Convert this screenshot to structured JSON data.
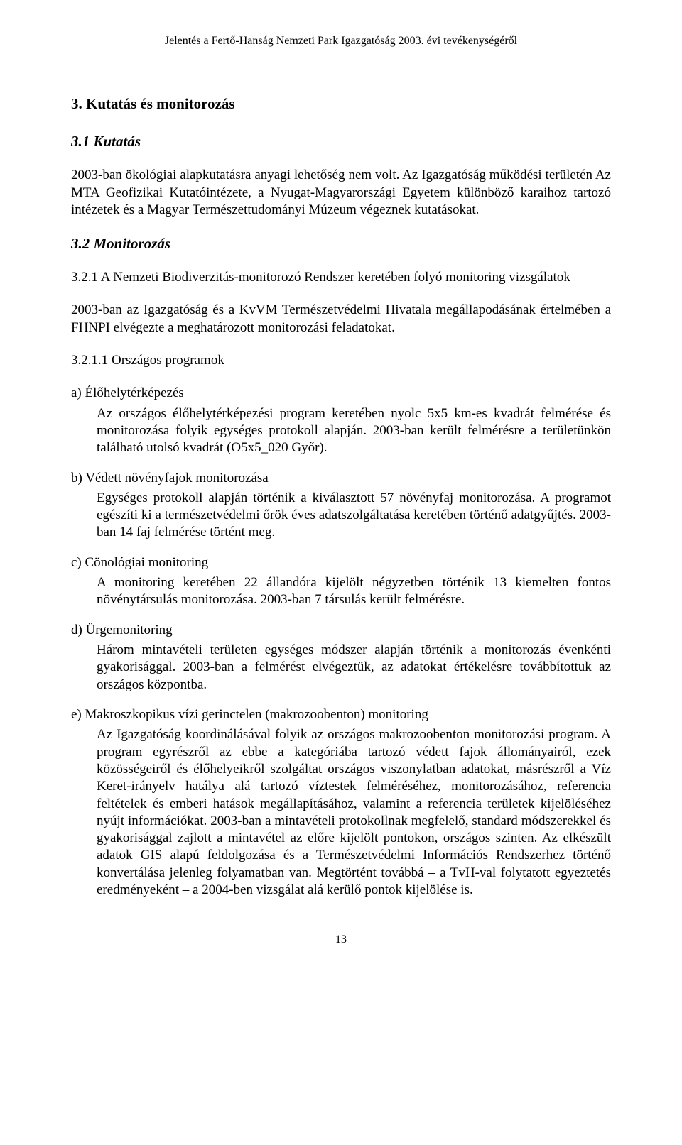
{
  "header": "Jelentés a Fertő-Hanság Nemzeti Park Igazgatóság 2003. évi tevékenységéről",
  "h_3": "3. Kutatás és monitorozás",
  "h_3_1": "3.1 Kutatás",
  "p_3_1": "2003-ban ökológiai alapkutatásra anyagi lehetőség nem volt. Az Igazgatóság működési területén Az MTA Geofizikai Kutatóintézete, a Nyugat-Magyarországi Egyetem különböző karaihoz tartozó intézetek és a Magyar Természettudományi Múzeum végeznek kutatásokat.",
  "h_3_2": "3.2 Monitorozás",
  "h_3_2_1": "3.2.1 A Nemzeti Biodiverzitás-monitorozó Rendszer keretében folyó monitoring vizsgálatok",
  "p_3_2_1": "2003-ban az Igazgatóság és a KvVM Természetvédelmi Hivatala megállapodásának értelmében a FHNPI elvégezte a meghatározott monitorozási feladatokat.",
  "h_3_2_1_1": "3.2.1.1 Országos programok",
  "a_label": "a) Élőhelytérképezés",
  "a_body": "Az országos élőhelytérképezési program keretében nyolc 5x5 km-es kvadrát felmérése és monitorozása folyik egységes protokoll alapján. 2003-ban került felmérésre a területünkön található utolsó kvadrát (O5x5_020 Győr).",
  "b_label": "b) Védett növényfajok monitorozása",
  "b_body": "Egységes protokoll alapján történik a kiválasztott 57 növényfaj monitorozása. A programot egészíti ki a természetvédelmi őrök éves adatszolgáltatása keretében történő adatgyűjtés. 2003-ban 14 faj felmérése történt meg.",
  "c_label": "c) Cönológiai monitoring",
  "c_body": "A monitoring keretében 22 állandóra kijelölt négyzetben történik 13 kiemelten fontos növénytársulás monitorozása. 2003-ban 7 társulás került felmérésre.",
  "d_label": "d) Ürgemonitoring",
  "d_body": "Három mintavételi területen egységes módszer alapján történik a monitorozás évenkénti gyakorisággal. 2003-ban a felmérést elvégeztük, az adatokat értékelésre továbbítottuk az országos központba.",
  "e_label": "e) Makroszkopikus vízi gerinctelen (makrozoobenton) monitoring",
  "e_body": "Az Igazgatóság koordinálásával folyik az országos makrozoobenton monitorozási program. A program egyrészről az ebbe a kategóriába tartozó védett fajok állományairól, ezek közösségeiről és élőhelyeikről szolgáltat országos viszonylatban adatokat, másrészről a Víz Keret-irányelv hatálya alá tartozó víztestek felméréséhez, monitorozásához, referencia feltételek és emberi hatások megállapításához, valamint a referencia területek kijelöléséhez nyújt információkat. 2003-ban a mintavételi protokollnak megfelelő, standard módszerekkel és gyakorisággal zajlott a mintavétel az előre kijelölt pontokon, országos szinten. Az elkészült adatok GIS alapú feldolgozása és a Természetvédelmi Információs Rendszerhez történő konvertálása jelenleg folyamatban van. Megtörtént továbbá – a TvH-val folytatott egyeztetés eredményeként – a 2004-ben vizsgálat alá kerülő pontok kijelölése is.",
  "pagenum": "13"
}
